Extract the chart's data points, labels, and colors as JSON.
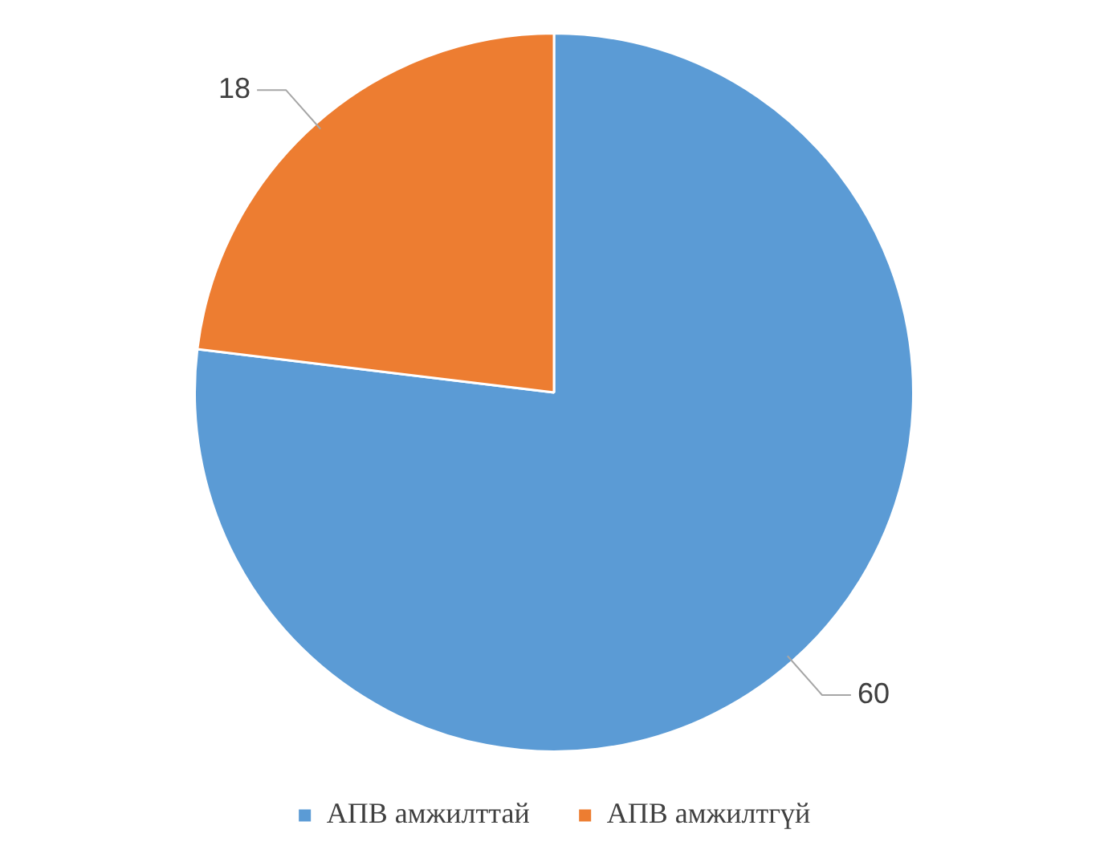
{
  "chart_data": {
    "type": "pie",
    "categories": [
      "АПВ амжилттай",
      "АПВ амжилтгүй"
    ],
    "values": [
      60,
      18
    ],
    "colors": [
      "#5b9bd5",
      "#ed7d31"
    ],
    "data_labels": true,
    "legend": "bottom"
  }
}
